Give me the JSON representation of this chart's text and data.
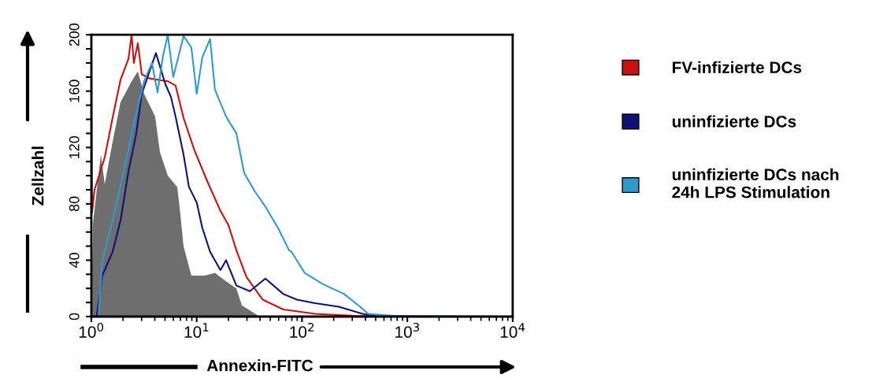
{
  "chart_data": {
    "type": "line",
    "xlabel": "Annexin-FITC",
    "ylabel": "Zellzahl",
    "log": "x",
    "xlim": [
      1,
      10000
    ],
    "xticks": [
      {
        "value": 1,
        "label": "10$^{0}$"
      },
      {
        "value": 10,
        "label": "10$^{1}$"
      },
      {
        "value": 100,
        "label": "10$^{2}$"
      },
      {
        "value": 1000,
        "label": "10$^{3}$"
      },
      {
        "value": 10000,
        "label": "10$^{4}$"
      }
    ],
    "ylim": [
      0,
      200
    ],
    "yticks": [
      0,
      {
        "value": 10,
        "label": null
      },
      {
        "value": 20,
        "label": null
      },
      {
        "value": 30,
        "label": null
      },
      40,
      {
        "value": 50,
        "label": null
      },
      {
        "value": 60,
        "label": null
      },
      {
        "value": 70,
        "label": null
      },
      80,
      {
        "value": 90,
        "label": null
      },
      {
        "value": 100,
        "label": null
      },
      {
        "value": 110,
        "label": null
      },
      120,
      {
        "value": 130,
        "label": null
      },
      {
        "value": 140,
        "label": null
      },
      {
        "value": 150,
        "label": null
      },
      160,
      {
        "value": 170,
        "label": null
      },
      {
        "value": 180,
        "label": null
      },
      {
        "value": 190,
        "label": null
      },
      200
    ],
    "grid": false,
    "legend": "right",
    "series": [
      {
        "type": "area",
        "color": "#6e6e6e",
        "x": [
          1.0,
          1.035,
          1.23,
          1.34,
          1.59,
          1.89,
          2.41,
          2.76,
          3.17,
          4.03,
          4.47,
          5.31,
          6.53,
          6.88,
          7.5,
          8.9,
          11.9,
          14.9,
          19.0,
          23.8,
          26.8,
          37.8
        ],
        "values": [
          1,
          66,
          115,
          94,
          124,
          152,
          167,
          174,
          158,
          142,
          117,
          100,
          92,
          78,
          50,
          29,
          29,
          31,
          25,
          20,
          8,
          1
        ]
      },
      {
        "name": "FV-infizierte DCs",
        "color": "#cc1010",
        "x": [
          1.0,
          1.017,
          1.071,
          1.34,
          1.59,
          1.89,
          2.25,
          2.41,
          2.53,
          2.76,
          3.01,
          3.57,
          5.31,
          6.3,
          7.5,
          9.52,
          12.6,
          16.8,
          20.0,
          23.8,
          29.7,
          42.3,
          66.5,
          133,
          312,
          742
        ],
        "values": [
          200,
          74,
          90,
          113,
          141,
          168,
          183,
          200,
          180,
          194,
          172,
          169,
          167,
          164,
          141,
          118,
          96,
          75,
          65,
          47,
          28,
          12,
          5,
          2,
          0.5,
          0
        ]
      },
      {
        "name": "uninfizierte DCs",
        "color": "#10107a",
        "x": [
          1.128,
          1.27,
          1.59,
          1.89,
          2.25,
          2.67,
          3.01,
          3.57,
          4.1,
          5.04,
          5.69,
          6.3,
          7.5,
          8.44,
          10.0,
          11.3,
          13.4,
          16.8,
          19.0,
          23.8,
          32.0,
          44.9,
          66.5,
          89.4,
          133,
          223,
          375,
          528
        ],
        "values": [
          1,
          29,
          46,
          68,
          103,
          130,
          158,
          174,
          187,
          165,
          156,
          142,
          115,
          92,
          81,
          63,
          46,
          33,
          40,
          22,
          18,
          27,
          16,
          12,
          9.5,
          7,
          2,
          0
        ]
      },
      {
        "name": "uninfizierte DCs nach\n24h LPS Stimulation",
        "color": "#2e9ad0",
        "x": [
          1.17,
          1.27,
          1.59,
          2.03,
          2.53,
          3.17,
          3.76,
          4.25,
          4.79,
          5.31,
          5.99,
          7.5,
          8.9,
          10.0,
          11.3,
          13.4,
          14.9,
          19.0,
          23.8,
          28.2,
          35.5,
          44.9,
          59.0,
          75.4,
          79.4,
          106,
          158,
          251,
          356,
          424,
          742,
          10000
        ],
        "values": [
          1,
          40,
          68,
          103,
          137,
          167,
          180,
          159,
          185,
          200,
          170,
          199,
          191,
          158,
          184,
          197,
          161,
          142,
          130,
          102,
          89,
          78,
          63,
          47,
          46,
          31,
          23,
          16,
          7,
          2,
          0.5,
          0
        ]
      }
    ]
  }
}
